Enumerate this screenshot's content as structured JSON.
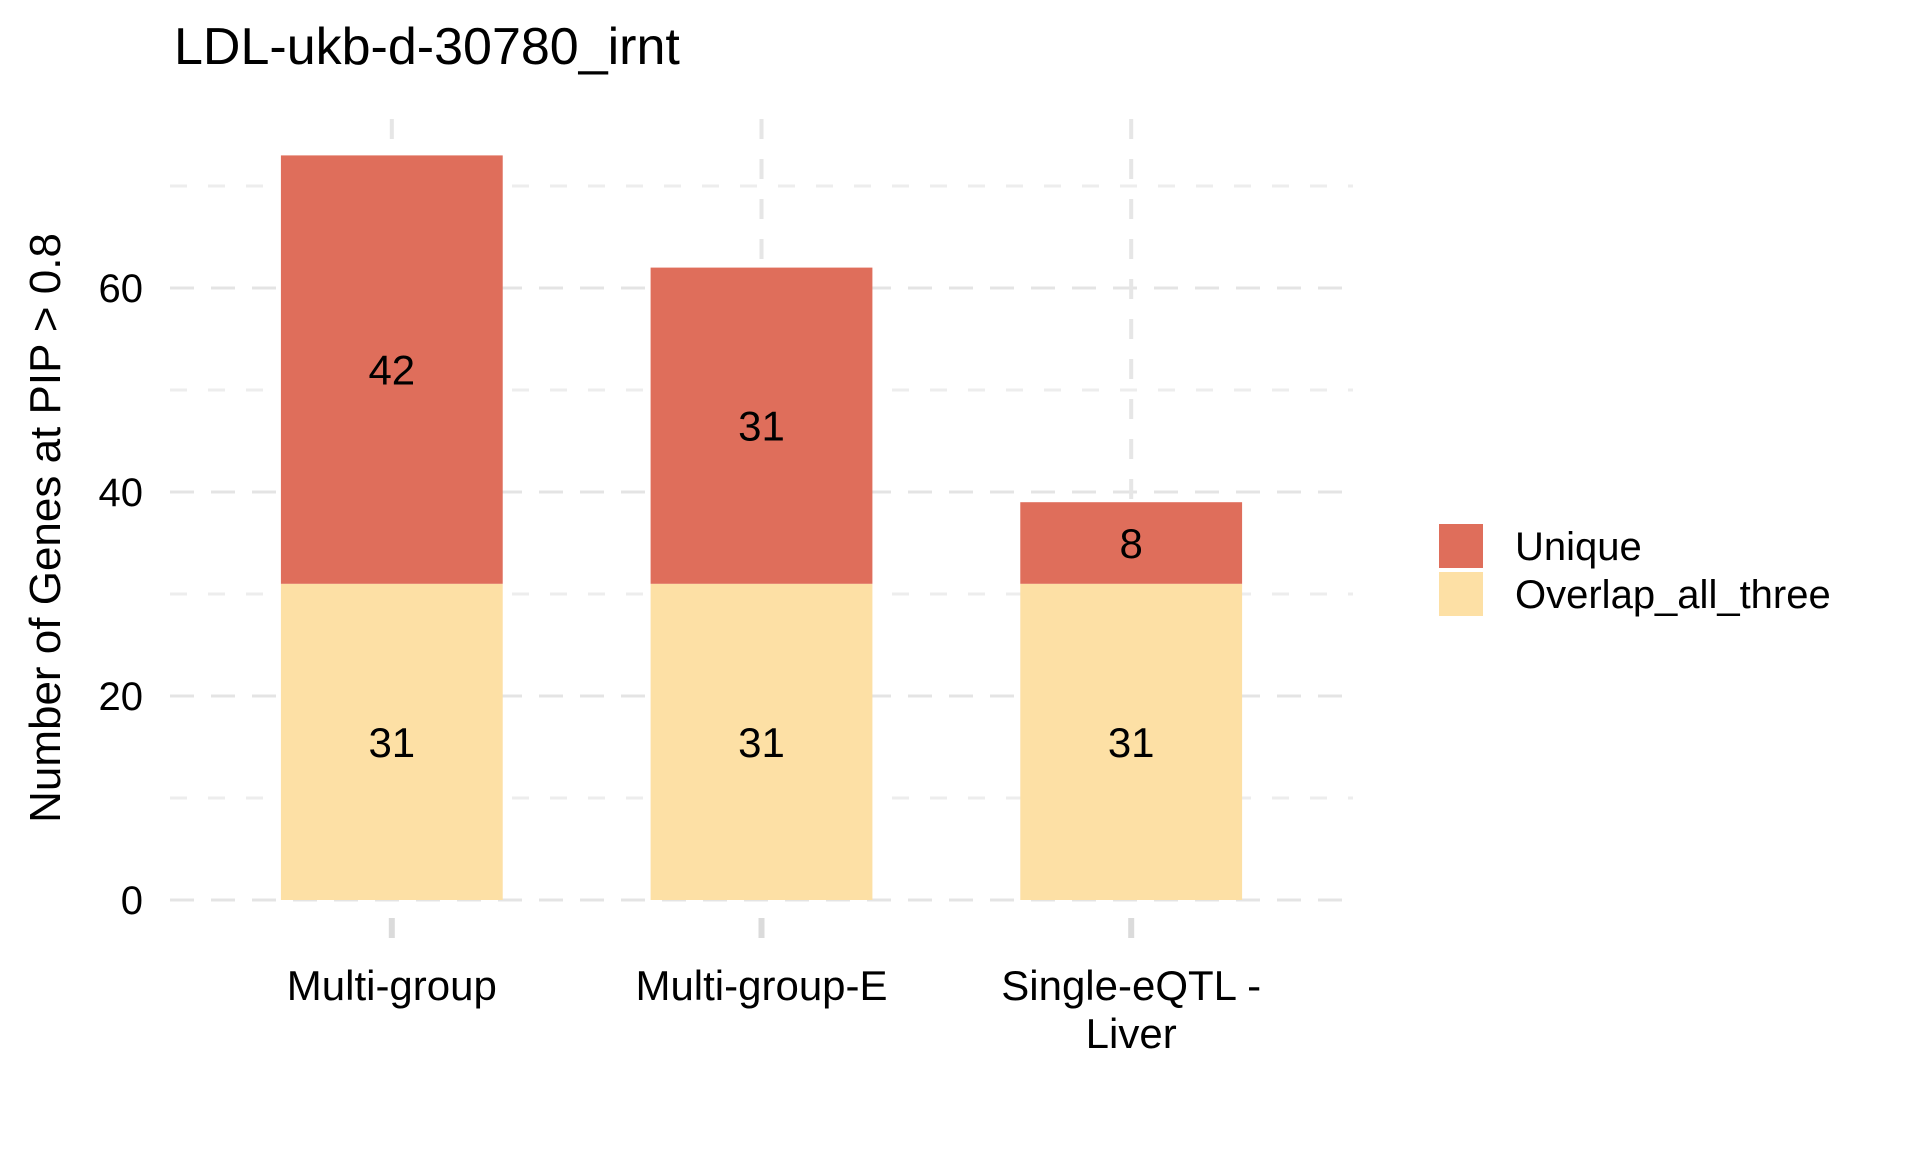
{
  "title": "LDL-ukb-d-30780_irnt",
  "y_axis": {
    "label": "Number of Genes at PIP > 0.8",
    "tick_labels": [
      "0",
      "20",
      "40",
      "60"
    ]
  },
  "x_axis": {
    "labels": [
      [
        "Multi-group"
      ],
      [
        "Multi-group-E"
      ],
      [
        "Single-eQTL -",
        "Liver"
      ]
    ]
  },
  "legend": {
    "items": [
      {
        "label": "Unique",
        "color": "#DF6E5B"
      },
      {
        "label": "Overlap_all_three",
        "color": "#FDE0A5"
      }
    ]
  },
  "chart_data": {
    "type": "bar",
    "stacked": true,
    "title": "LDL-ukb-d-30780_irnt",
    "xlabel": "",
    "ylabel": "Number of Genes at PIP > 0.8",
    "categories": [
      "Multi-group",
      "Multi-group-E",
      "Single-eQTL - Liver"
    ],
    "series": [
      {
        "name": "Overlap_all_three",
        "color": "#FDE0A5",
        "values": [
          31,
          31,
          31
        ]
      },
      {
        "name": "Unique",
        "color": "#DF6E5B",
        "values": [
          42,
          31,
          8
        ]
      }
    ],
    "totals": [
      73,
      62,
      39
    ],
    "bar_value_labels": [
      [
        31,
        31,
        31
      ],
      [
        42,
        31,
        8
      ]
    ],
    "bar_label_color": "#FFFFFF",
    "ylim": [
      0,
      76.6
    ],
    "yticks_major": [
      0,
      20,
      40,
      60
    ],
    "yticks_minor": [
      10,
      30,
      50,
      70
    ],
    "grid": "dashed",
    "legend_position": "right",
    "colors": {
      "grid_major": "#E4E4E4",
      "grid_minor": "#EDEDED",
      "grid_vertical": "#E6E6E6",
      "axis_tick": "#DBDBDB",
      "text": "#000000",
      "background": "#FFFFFF"
    }
  }
}
